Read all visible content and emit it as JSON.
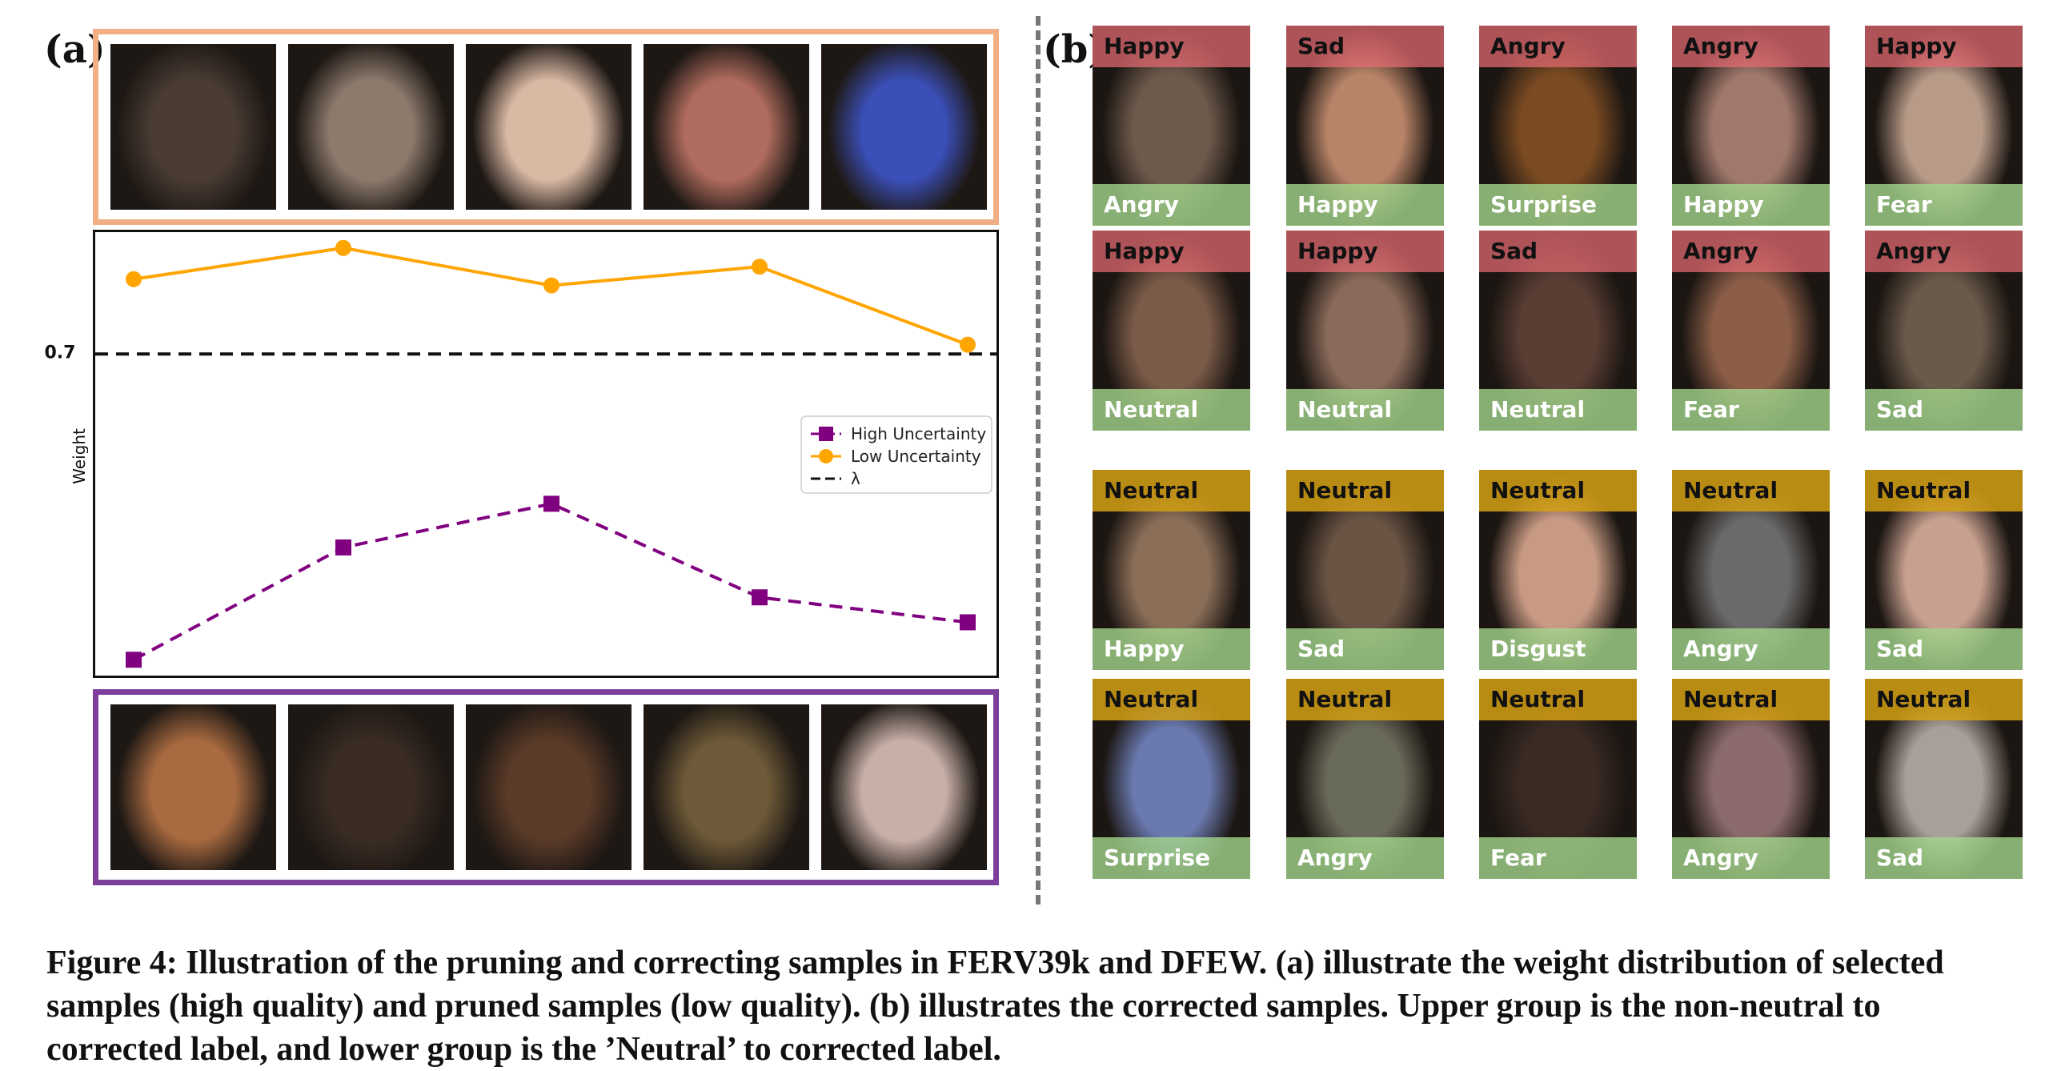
{
  "panel_a": {
    "label": "(a)",
    "top_frame_color": "#f2ae84",
    "bottom_frame_color": "#7d3f9b",
    "top_faces": [
      "#4a3c34",
      "#8c7a6c",
      "#d9b8a4",
      "#b06c5e",
      "#3b4fb8"
    ],
    "bottom_faces": [
      "#a86a40",
      "#3a2c24",
      "#5a3a28",
      "#6e5a38",
      "#c8b0a8"
    ]
  },
  "chart_data": {
    "type": "line",
    "ylabel": "Weight",
    "x": [
      1,
      2,
      3,
      4,
      5
    ],
    "threshold": {
      "value": 0.7,
      "tick_label": "0.7",
      "legend": "λ"
    },
    "series": [
      {
        "name": "High Uncertainty",
        "values": [
          0.21,
          0.39,
          0.46,
          0.31,
          0.27
        ],
        "color": "#800080",
        "marker": "square",
        "linestyle": "dashed"
      },
      {
        "name": "Low Uncertainty",
        "values": [
          0.82,
          0.87,
          0.81,
          0.84,
          0.715
        ],
        "color": "#ffa500",
        "marker": "circle",
        "linestyle": "solid"
      }
    ],
    "ylim": [
      0.2,
      0.88
    ],
    "legend_position": "center-right"
  },
  "panel_b": {
    "label": "(b)",
    "colors": {
      "original_nonneutral": "#e86c74",
      "original_neutral": "#d4a014",
      "corrected": "#a4d68c"
    },
    "upper_group": [
      {
        "top": "Happy",
        "bottom": "Angry",
        "face": "#6e5a4c"
      },
      {
        "top": "Sad",
        "bottom": "Happy",
        "face": "#b88468"
      },
      {
        "top": "Angry",
        "bottom": "Surprise",
        "face": "#7a4a22"
      },
      {
        "top": "Angry",
        "bottom": "Happy",
        "face": "#a0786c"
      },
      {
        "top": "Happy",
        "bottom": "Fear",
        "face": "#b89a88"
      },
      {
        "top": "Happy",
        "bottom": "Neutral",
        "face": "#7a5a48"
      },
      {
        "top": "Happy",
        "bottom": "Neutral",
        "face": "#8a6a5a"
      },
      {
        "top": "Sad",
        "bottom": "Neutral",
        "face": "#5a3e34"
      },
      {
        "top": "Angry",
        "bottom": "Fear",
        "face": "#8c5e48"
      },
      {
        "top": "Angry",
        "bottom": "Sad",
        "face": "#6a5a4a"
      }
    ],
    "lower_group": [
      {
        "top": "Neutral",
        "bottom": "Happy",
        "face": "#8a6e58"
      },
      {
        "top": "Neutral",
        "bottom": "Sad",
        "face": "#6a5444"
      },
      {
        "top": "Neutral",
        "bottom": "Disgust",
        "face": "#c89a84"
      },
      {
        "top": "Neutral",
        "bottom": "Angry",
        "face": "#6a6a6a"
      },
      {
        "top": "Neutral",
        "bottom": "Sad",
        "face": "#c8a090"
      },
      {
        "top": "Neutral",
        "bottom": "Surprise",
        "face": "#6a7ab0"
      },
      {
        "top": "Neutral",
        "bottom": "Angry",
        "face": "#6a6a5a"
      },
      {
        "top": "Neutral",
        "bottom": "Fear",
        "face": "#3a2a24"
      },
      {
        "top": "Neutral",
        "bottom": "Angry",
        "face": "#8a6a6a"
      },
      {
        "top": "Neutral",
        "bottom": "Sad",
        "face": "#a8a098"
      }
    ]
  },
  "caption": "Figure 4: Illustration of the pruning and correcting samples in FERV39k and DFEW. (a) illustrate the weight distribution of selected samples (high quality) and pruned samples (low quality). (b) illustrates the corrected samples. Upper group is the non-neutral to corrected label, and lower group is the ’Neutral’ to corrected label."
}
